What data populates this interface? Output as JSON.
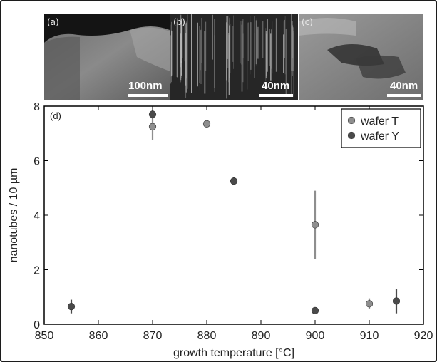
{
  "micrographs": [
    {
      "panel_label": "(a)",
      "scale_label": "100nm",
      "icon": "microscopy-image-a"
    },
    {
      "panel_label": "(b)",
      "scale_label": "40nm",
      "icon": "microscopy-image-b"
    },
    {
      "panel_label": "(c)",
      "scale_label": "40nm",
      "icon": "microscopy-image-c"
    }
  ],
  "chart_data": {
    "type": "scatter",
    "panel_label": "(d)",
    "xlabel": "growth temperature [°C]",
    "ylabel": "nanotubes / 10 µm",
    "xlim": [
      850,
      920
    ],
    "ylim": [
      0,
      8
    ],
    "xticks": [
      850,
      860,
      870,
      880,
      890,
      900,
      910,
      920
    ],
    "yticks": [
      0,
      2,
      4,
      6,
      8
    ],
    "grid": false,
    "legend_position": "top-right",
    "error_bars": true,
    "series": [
      {
        "name": "wafer T",
        "color": "#8e8e8e",
        "points": [
          {
            "x": 870,
            "y": 7.25,
            "err": 0.5
          },
          {
            "x": 880,
            "y": 7.35,
            "err": 0
          },
          {
            "x": 900,
            "y": 3.65,
            "err": 1.25
          },
          {
            "x": 910,
            "y": 0.75,
            "err": 0.2
          }
        ]
      },
      {
        "name": "wafer Y",
        "color": "#4a4a4a",
        "points": [
          {
            "x": 855,
            "y": 0.65,
            "err": 0.25
          },
          {
            "x": 870,
            "y": 7.7,
            "err": 0.15
          },
          {
            "x": 885,
            "y": 5.25,
            "err": 0.15
          },
          {
            "x": 900,
            "y": 0.5,
            "err": 0
          },
          {
            "x": 915,
            "y": 0.85,
            "err": 0.45
          }
        ]
      }
    ]
  }
}
